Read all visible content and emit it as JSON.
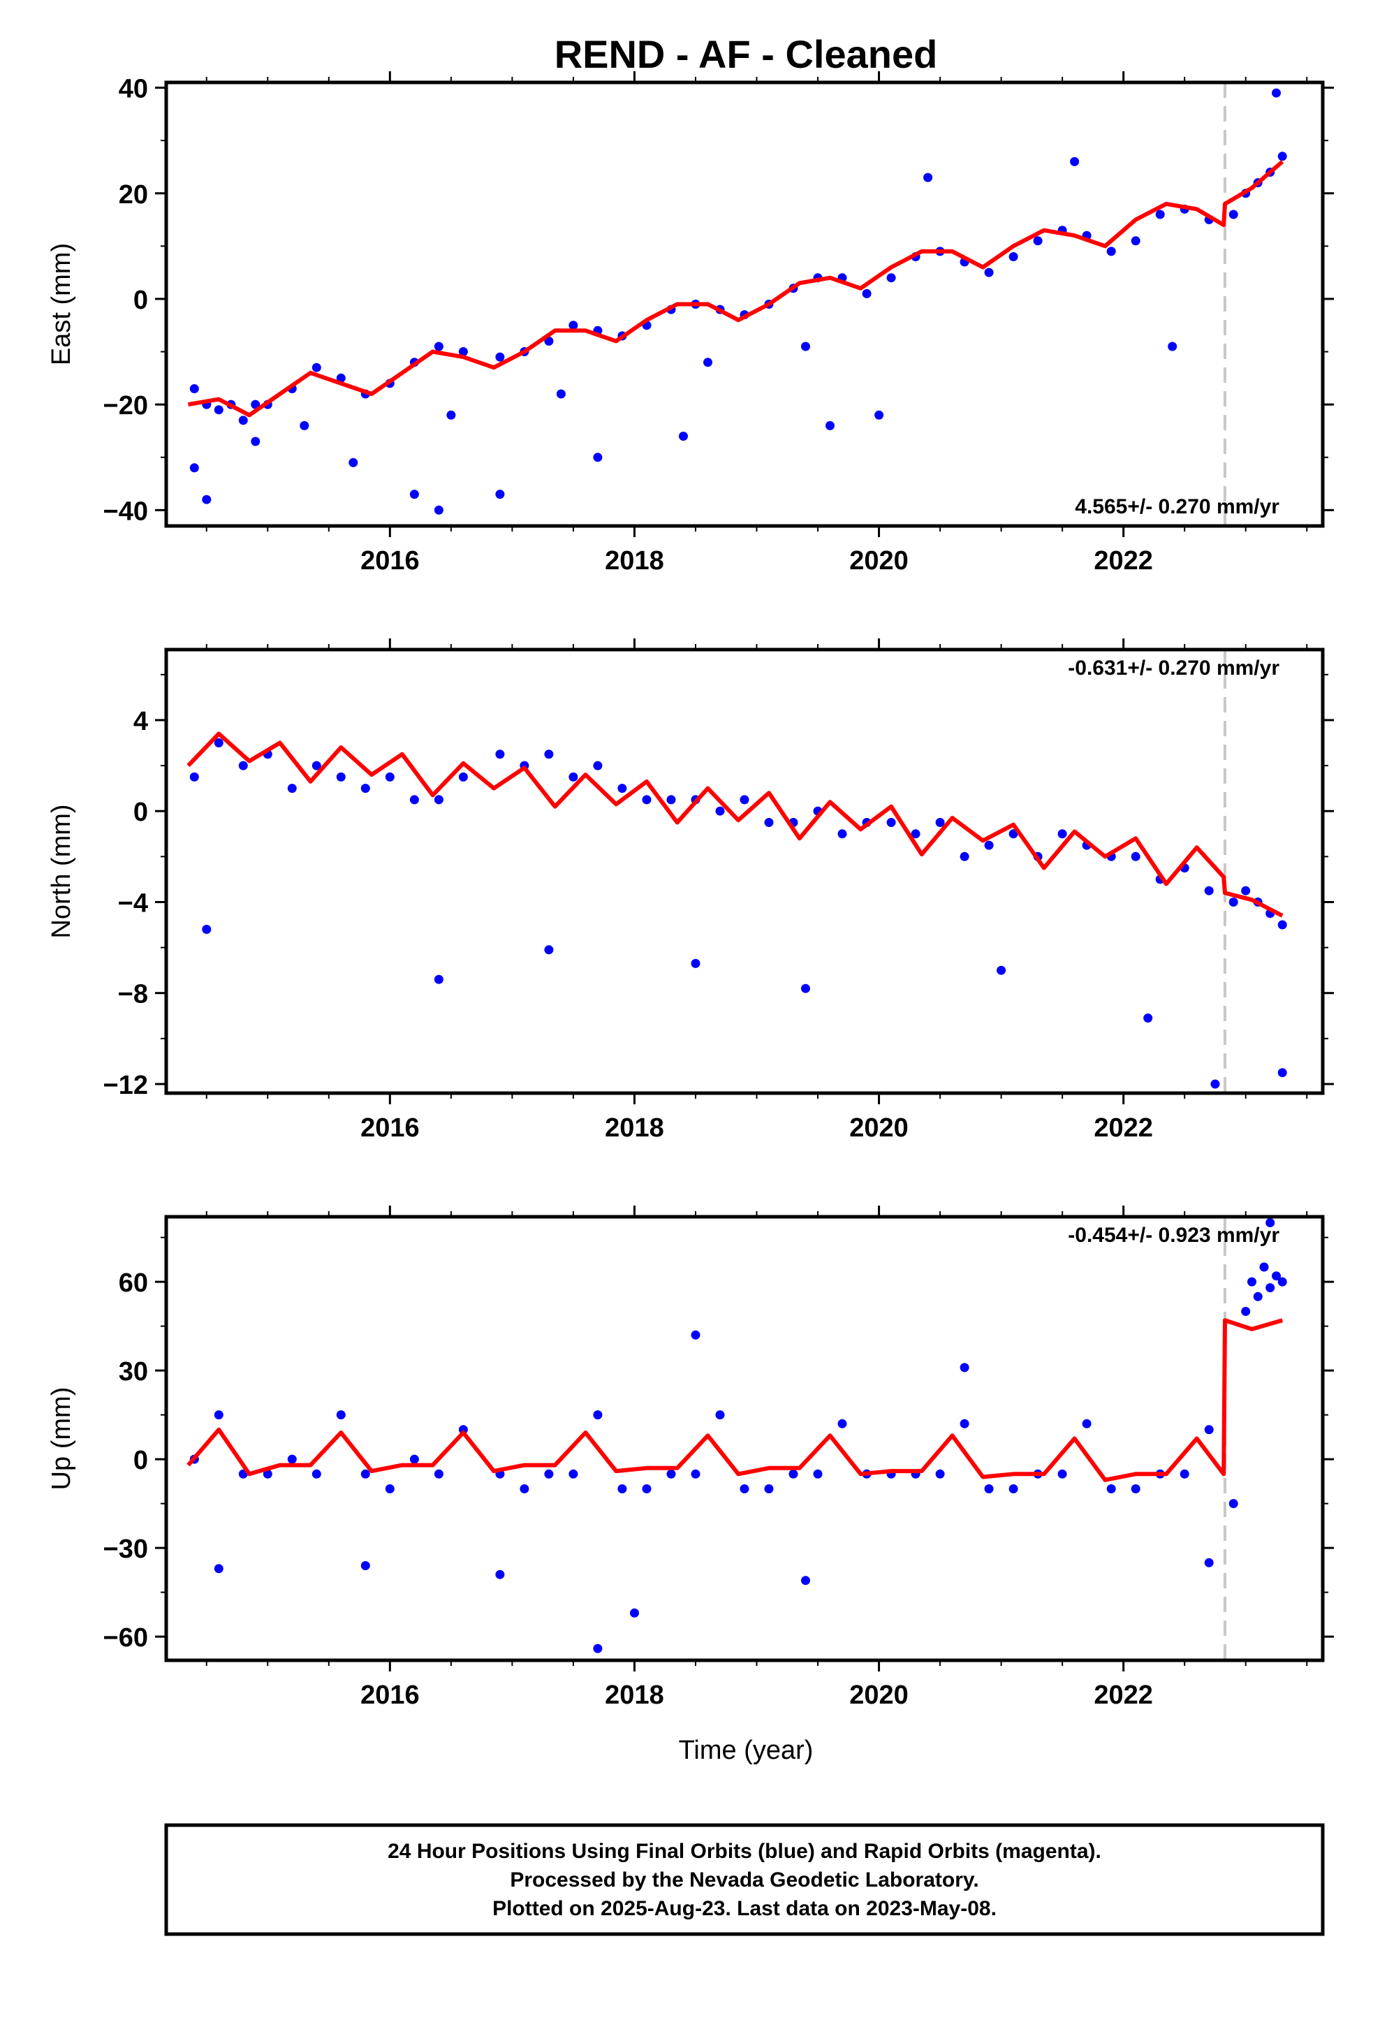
{
  "title": "REND  - AF - Cleaned",
  "x_axis_label": "Time (year)",
  "footer": {
    "line1": "24 Hour Positions Using Final Orbits (blue) and Rapid Orbits (magenta).",
    "line2": "Processed by the Nevada Geodetic Laboratory.",
    "line3": "Plotted on 2025-Aug-23. Last data on 2023-May-08."
  },
  "colors": {
    "points": "#0000ff",
    "model": "#ff0000",
    "equipment_change": "#c8c8c8",
    "frame": "#000000"
  },
  "chart_data": [
    {
      "type": "scatter",
      "name": "east",
      "ylabel": "East (mm)",
      "xlim": [
        2014.17,
        2023.63
      ],
      "ylim": [
        -43,
        41
      ],
      "x_ticks": [
        2016,
        2018,
        2020,
        2022
      ],
      "y_ticks": [
        -40,
        -20,
        0,
        20,
        40
      ],
      "grid": false,
      "rate_label": "4.565+/- 0.270 mm/yr",
      "rate_label_position": "bottom-right",
      "equipment_change_x": 2022.83,
      "model_curve": {
        "x": [
          2014.35,
          2014.6,
          2014.85,
          2015.1,
          2015.35,
          2015.6,
          2015.85,
          2016.1,
          2016.35,
          2016.6,
          2016.85,
          2017.1,
          2017.35,
          2017.6,
          2017.85,
          2018.1,
          2018.35,
          2018.6,
          2018.85,
          2019.1,
          2019.35,
          2019.6,
          2019.85,
          2020.1,
          2020.35,
          2020.6,
          2020.85,
          2021.1,
          2021.35,
          2021.6,
          2021.85,
          2022.1,
          2022.35,
          2022.6,
          2022.82,
          2022.83,
          2023.05,
          2023.3
        ],
        "y": [
          -20,
          -19,
          -22,
          -18,
          -14,
          -16,
          -18,
          -14,
          -10,
          -11,
          -13,
          -10,
          -6,
          -6,
          -8,
          -4,
          -1,
          -1,
          -4,
          -1,
          3,
          4,
          2,
          6,
          9,
          9,
          6,
          10,
          13,
          12,
          10,
          15,
          18,
          17,
          14,
          18,
          21,
          26
        ]
      },
      "points": {
        "x": [
          2014.4,
          2014.5,
          2014.6,
          2014.7,
          2014.8,
          2014.9,
          2015.0,
          2015.2,
          2015.4,
          2015.6,
          2015.8,
          2016.0,
          2016.2,
          2016.4,
          2016.6,
          2016.9,
          2017.1,
          2017.3,
          2017.5,
          2017.7,
          2017.9,
          2018.1,
          2018.3,
          2018.5,
          2018.7,
          2018.9,
          2019.1,
          2019.3,
          2019.5,
          2019.7,
          2019.9,
          2020.1,
          2020.3,
          2020.5,
          2020.7,
          2020.9,
          2021.1,
          2021.3,
          2021.5,
          2021.7,
          2021.9,
          2022.1,
          2022.3,
          2022.5,
          2022.7,
          2022.9,
          2023.0,
          2023.1,
          2023.2,
          2023.3,
          2014.5,
          2014.9,
          2015.7,
          2016.2,
          2016.4,
          2016.9,
          2017.7,
          2018.4,
          2019.6,
          2020.0,
          2014.4,
          2015.3,
          2016.5,
          2017.4,
          2018.6,
          2019.4,
          2020.4,
          2021.6,
          2022.4,
          2023.25
        ],
        "y": [
          -17,
          -20,
          -21,
          -20,
          -23,
          -20,
          -20,
          -17,
          -13,
          -15,
          -18,
          -16,
          -12,
          -9,
          -10,
          -11,
          -10,
          -8,
          -5,
          -6,
          -7,
          -5,
          -2,
          -1,
          -2,
          -3,
          -1,
          2,
          4,
          4,
          1,
          4,
          8,
          9,
          7,
          5,
          8,
          11,
          13,
          12,
          9,
          11,
          16,
          17,
          15,
          16,
          20,
          22,
          24,
          27,
          -38,
          -27,
          -31,
          -37,
          -40,
          -37,
          -30,
          -26,
          -24,
          -22,
          -32,
          -24,
          -22,
          -18,
          -12,
          -9,
          23,
          26,
          -9,
          39
        ]
      }
    },
    {
      "type": "scatter",
      "name": "north",
      "ylabel": "North (mm)",
      "xlim": [
        2014.17,
        2023.63
      ],
      "ylim": [
        -12.4,
        7.1
      ],
      "x_ticks": [
        2016,
        2018,
        2020,
        2022
      ],
      "y_ticks": [
        -12,
        -8,
        -4,
        0,
        4
      ],
      "grid": false,
      "rate_label": "-0.631+/- 0.270 mm/yr",
      "rate_label_position": "top-right",
      "equipment_change_x": 2022.83,
      "model_curve": {
        "x": [
          2014.35,
          2014.6,
          2014.85,
          2015.1,
          2015.35,
          2015.6,
          2015.85,
          2016.1,
          2016.35,
          2016.6,
          2016.85,
          2017.1,
          2017.35,
          2017.6,
          2017.85,
          2018.1,
          2018.35,
          2018.6,
          2018.85,
          2019.1,
          2019.35,
          2019.6,
          2019.85,
          2020.1,
          2020.35,
          2020.6,
          2020.85,
          2021.1,
          2021.35,
          2021.6,
          2021.85,
          2022.1,
          2022.35,
          2022.6,
          2022.82,
          2022.83,
          2023.05,
          2023.3
        ],
        "y": [
          2.0,
          3.4,
          2.2,
          3.0,
          1.3,
          2.8,
          1.6,
          2.5,
          0.7,
          2.1,
          1.0,
          1.9,
          0.2,
          1.6,
          0.3,
          1.3,
          -0.5,
          1.0,
          -0.4,
          0.8,
          -1.2,
          0.4,
          -0.8,
          0.2,
          -1.9,
          -0.3,
          -1.3,
          -0.6,
          -2.5,
          -0.9,
          -2.0,
          -1.2,
          -3.2,
          -1.6,
          -2.9,
          -3.6,
          -3.9,
          -4.6
        ]
      },
      "points": {
        "x": [
          2014.4,
          2014.6,
          2014.8,
          2015.0,
          2015.2,
          2015.4,
          2015.6,
          2015.8,
          2016.0,
          2016.2,
          2016.4,
          2016.6,
          2016.9,
          2017.1,
          2017.3,
          2017.5,
          2017.7,
          2017.9,
          2018.1,
          2018.3,
          2018.5,
          2018.7,
          2018.9,
          2019.1,
          2019.3,
          2019.5,
          2019.7,
          2019.9,
          2020.1,
          2020.3,
          2020.5,
          2020.7,
          2020.9,
          2021.1,
          2021.3,
          2021.5,
          2021.7,
          2021.9,
          2022.1,
          2022.3,
          2022.5,
          2022.7,
          2022.9,
          2023.0,
          2023.1,
          2023.2,
          2023.3,
          2014.5,
          2016.4,
          2017.3,
          2018.5,
          2019.4,
          2021.0,
          2022.2,
          2022.75,
          2023.3
        ],
        "y": [
          1.5,
          3.0,
          2.0,
          2.5,
          1.0,
          2.0,
          1.5,
          1.0,
          1.5,
          0.5,
          0.5,
          1.5,
          2.5,
          2.0,
          2.5,
          1.5,
          2.0,
          1.0,
          0.5,
          0.5,
          0.5,
          0,
          0.5,
          -0.5,
          -0.5,
          0,
          -1,
          -0.5,
          -0.5,
          -1,
          -0.5,
          -2,
          -1.5,
          -1,
          -2,
          -1,
          -1.5,
          -2,
          -2,
          -3,
          -2.5,
          -3.5,
          -4,
          -3.5,
          -4,
          -4.5,
          -5,
          -5.2,
          -7.4,
          -6.1,
          -6.7,
          -7.8,
          -7.0,
          -9.1,
          -12.0,
          -11.5
        ]
      }
    },
    {
      "type": "scatter",
      "name": "up",
      "ylabel": "Up (mm)",
      "xlim": [
        2014.17,
        2023.63
      ],
      "ylim": [
        -68,
        82
      ],
      "x_ticks": [
        2016,
        2018,
        2020,
        2022
      ],
      "y_ticks": [
        -60,
        -30,
        0,
        30,
        60
      ],
      "grid": false,
      "rate_label": "-0.454+/- 0.923 mm/yr",
      "rate_label_position": "top-right",
      "equipment_change_x": 2022.83,
      "model_curve": {
        "x": [
          2014.35,
          2014.6,
          2014.85,
          2015.1,
          2015.35,
          2015.6,
          2015.85,
          2016.1,
          2016.35,
          2016.6,
          2016.85,
          2017.1,
          2017.35,
          2017.6,
          2017.85,
          2018.1,
          2018.35,
          2018.6,
          2018.85,
          2019.1,
          2019.35,
          2019.6,
          2019.85,
          2020.1,
          2020.35,
          2020.6,
          2020.85,
          2021.1,
          2021.35,
          2021.6,
          2021.85,
          2022.1,
          2022.35,
          2022.6,
          2022.82,
          2022.83,
          2023.05,
          2023.3
        ],
        "y": [
          -2,
          10,
          -5,
          -2,
          -2,
          9,
          -4,
          -2,
          -2,
          9,
          -4,
          -2,
          -2,
          9,
          -4,
          -3,
          -3,
          8,
          -5,
          -3,
          -3,
          8,
          -5,
          -4,
          -4,
          8,
          -6,
          -5,
          -5,
          7,
          -7,
          -5,
          -5,
          7,
          -5,
          47,
          44,
          47
        ]
      },
      "points": {
        "x": [
          2014.4,
          2014.6,
          2014.8,
          2015.0,
          2015.2,
          2015.4,
          2015.6,
          2015.8,
          2016.0,
          2016.2,
          2016.4,
          2016.6,
          2016.9,
          2017.1,
          2017.3,
          2017.5,
          2017.7,
          2017.9,
          2018.1,
          2018.3,
          2018.5,
          2018.7,
          2018.9,
          2019.1,
          2019.3,
          2019.5,
          2019.7,
          2019.9,
          2020.1,
          2020.3,
          2020.5,
          2020.7,
          2020.9,
          2021.1,
          2021.3,
          2021.5,
          2021.7,
          2021.9,
          2022.1,
          2022.3,
          2022.5,
          2022.7,
          2022.9,
          2023.0,
          2023.05,
          2023.1,
          2023.15,
          2023.2,
          2023.25,
          2023.3,
          2014.6,
          2015.8,
          2016.9,
          2017.7,
          2018.0,
          2018.5,
          2019.4,
          2020.7,
          2022.7,
          2023.2
        ],
        "y": [
          0,
          15,
          -5,
          -5,
          0,
          -5,
          15,
          -5,
          -10,
          0,
          -5,
          10,
          -5,
          -10,
          -5,
          -5,
          15,
          -10,
          -10,
          -5,
          -5,
          15,
          -10,
          -10,
          -5,
          -5,
          12,
          -5,
          -5,
          -5,
          -5,
          12,
          -10,
          -10,
          -5,
          -5,
          12,
          -10,
          -10,
          -5,
          -5,
          10,
          -15,
          50,
          60,
          55,
          65,
          58,
          62,
          60,
          -37,
          -36,
          -39,
          -64,
          -52,
          42,
          -41,
          31,
          -35,
          80
        ]
      }
    }
  ]
}
